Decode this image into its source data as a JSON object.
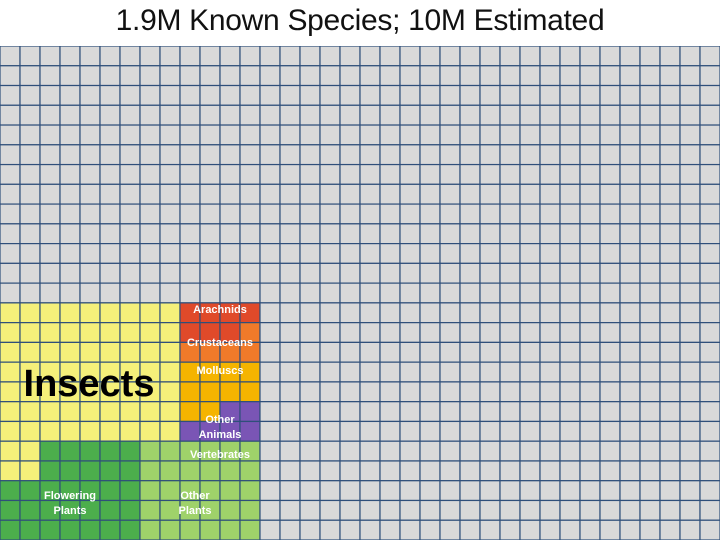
{
  "title": "1.9M Known Species; 10M Estimated",
  "colors": {
    "background_cell": "#d9d9d9",
    "grid_line": "#2f4f7a",
    "insects": "#f5f07a",
    "arachnids": "#e04a2a",
    "crustaceans": "#f07a2a",
    "molluscs": "#f5b400",
    "other_animals": "#7a55b5",
    "vertebrates": "#4a86d0",
    "flowering_plants": "#4cae4c",
    "other_plants": "#9fd26a"
  },
  "chart_data": {
    "type": "waffle",
    "title": "1.9M Known Species; 10M Estimated",
    "grid": {
      "rows": 25,
      "cols": 36
    },
    "groups": [
      {
        "key": "insects",
        "label": "Insects"
      },
      {
        "key": "arachnids",
        "label": "Arachnids"
      },
      {
        "key": "crustaceans",
        "label": "Crustaceans"
      },
      {
        "key": "molluscs",
        "label": "Molluscs"
      },
      {
        "key": "other_animals",
        "label": "Other Animals"
      },
      {
        "key": "vertebrates",
        "label": "Vertebrates"
      },
      {
        "key": "flowering_plants",
        "label": "Flowering Plants"
      },
      {
        "key": "other_plants",
        "label": "Other Plants"
      }
    ]
  }
}
